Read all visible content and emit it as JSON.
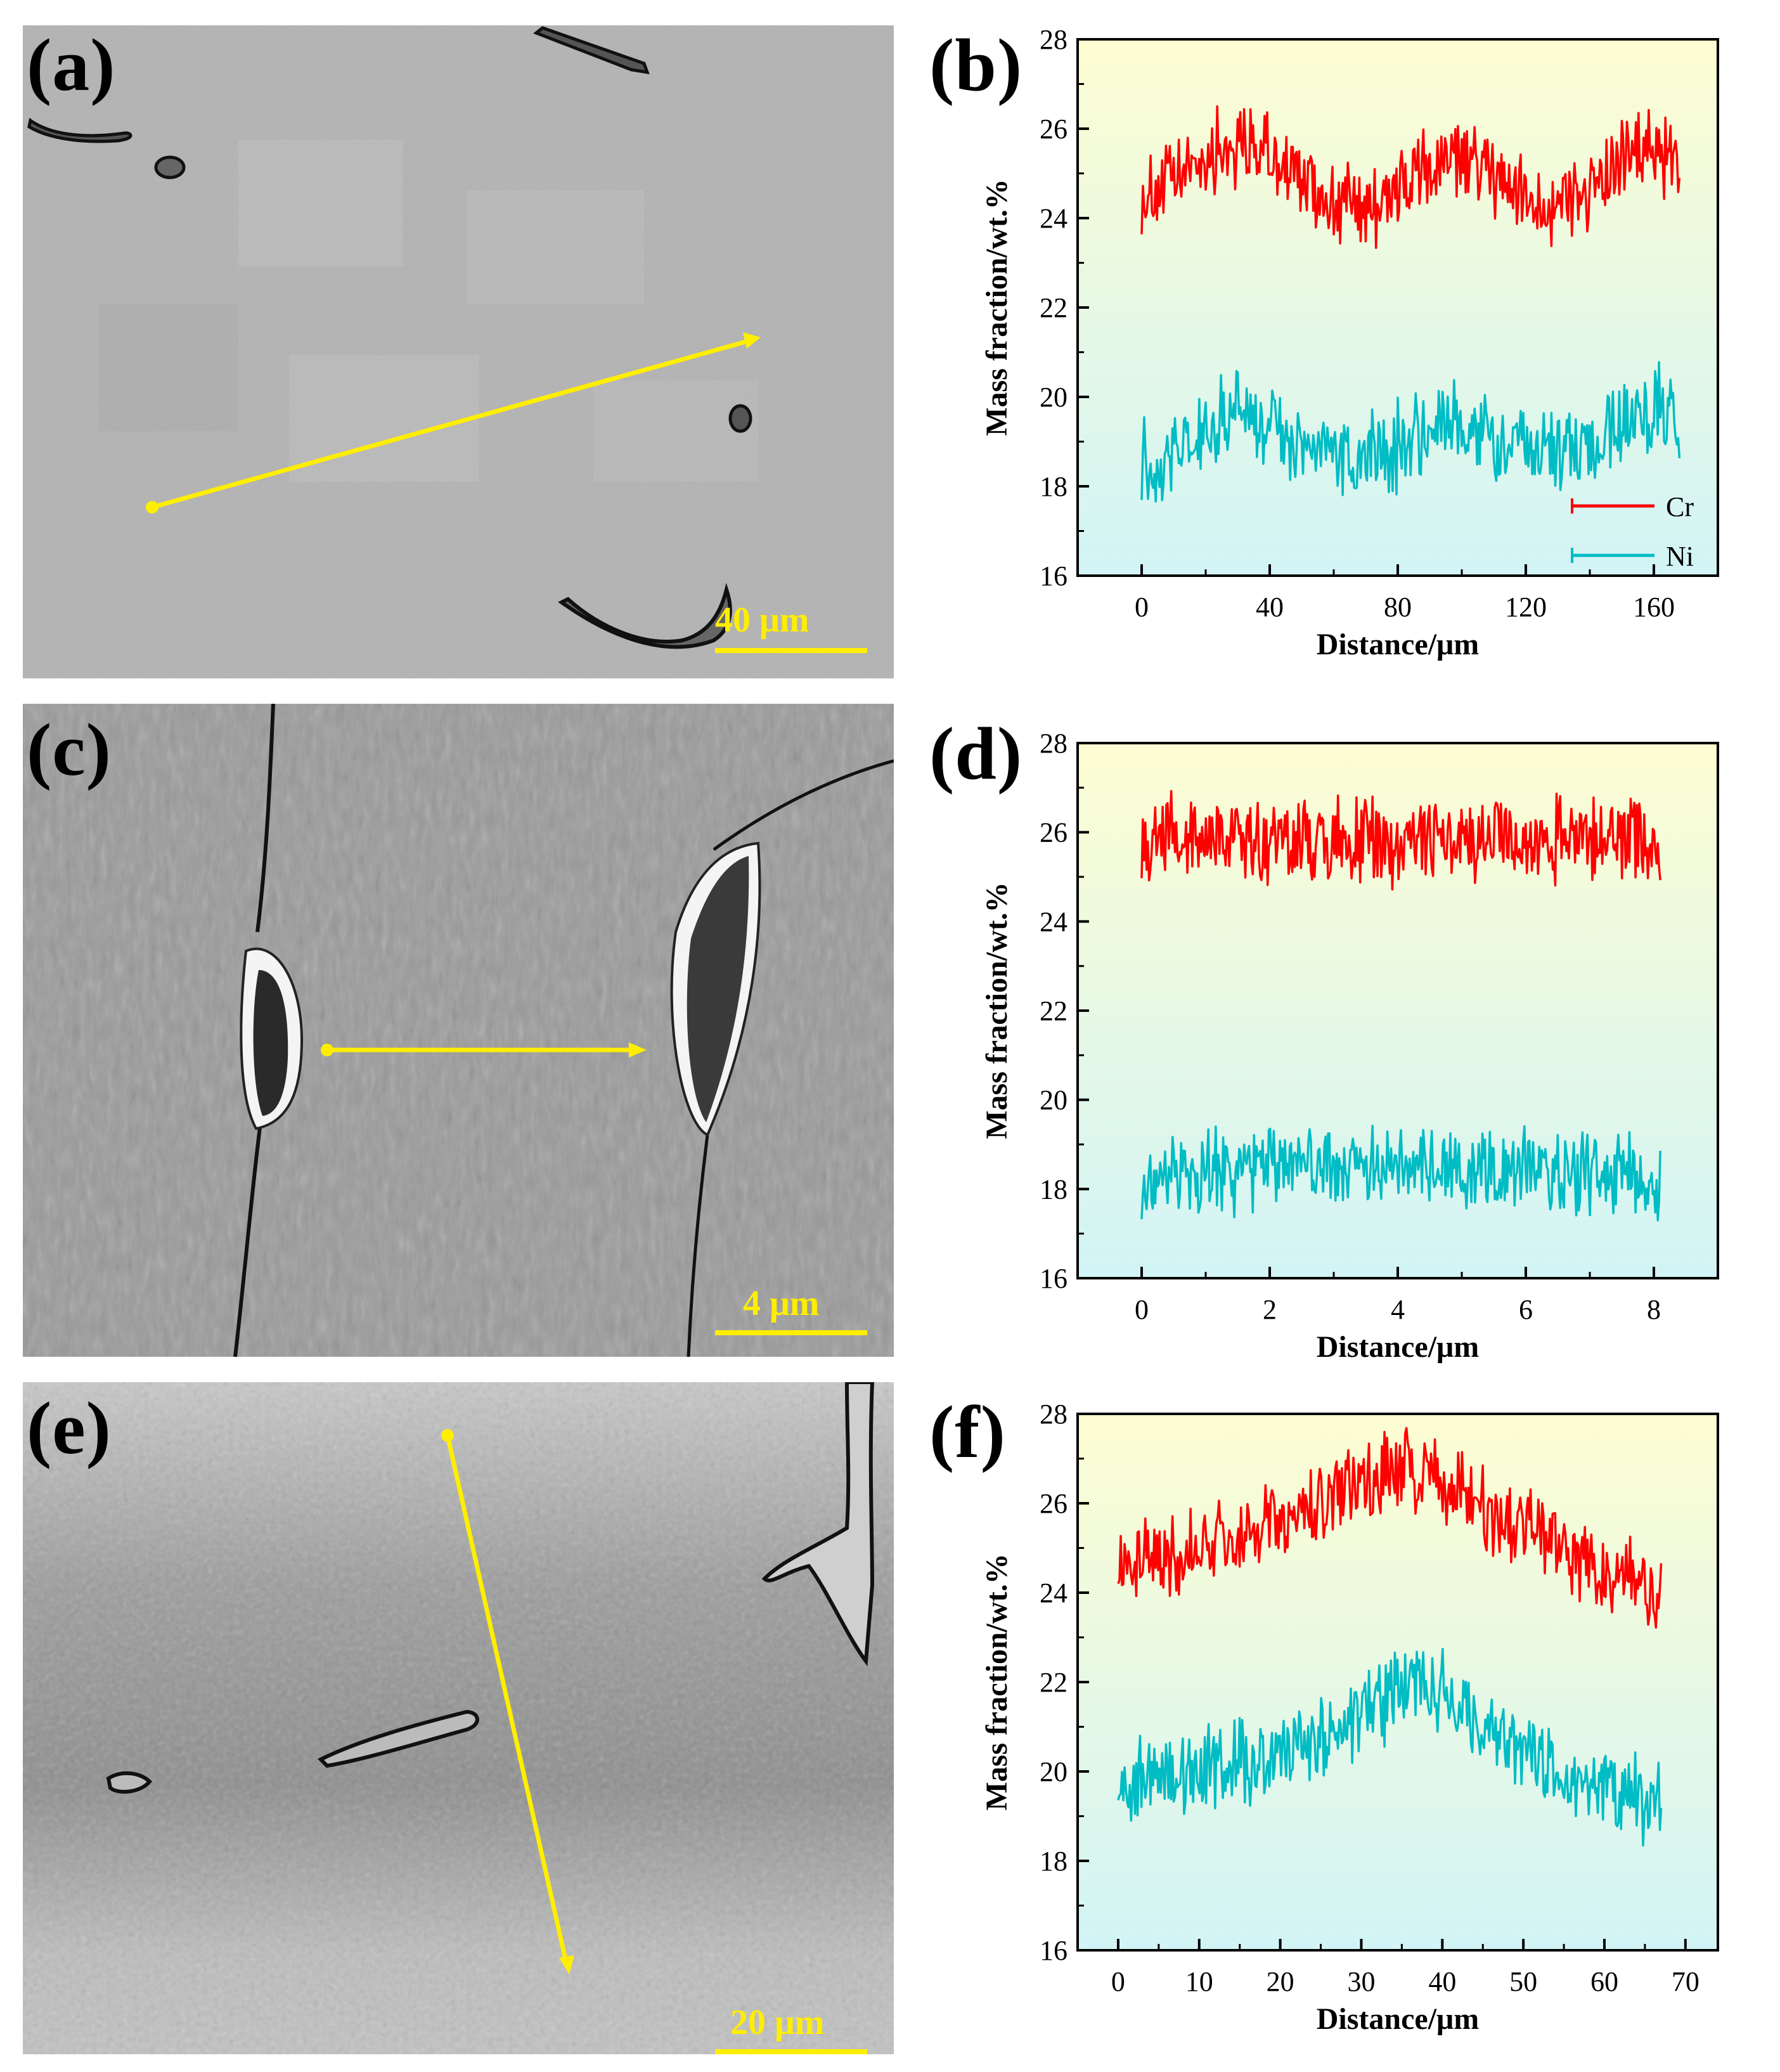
{
  "panels": {
    "a": {
      "label": "(a)",
      "scalebar": "40 μm"
    },
    "c": {
      "label": "(c)",
      "scalebar": "4 μm"
    },
    "e": {
      "label": "(e)",
      "scalebar": "20 μm"
    }
  },
  "colors": {
    "cr": "#ff0000",
    "ni": "#00bcc4",
    "arrow": "#ffee00",
    "scalebar": "#ffee00",
    "bg_top": "#fdfdd2",
    "bg_bottom": "#d2f4f6"
  },
  "chart_data": [
    {
      "id": "b",
      "label": "(b)",
      "type": "line",
      "xlabel": "Distance/μm",
      "ylabel": "Mass fraction/wt.%",
      "xlim": [
        -20,
        180
      ],
      "ylim": [
        16,
        28
      ],
      "xticks": [
        0,
        40,
        80,
        120,
        160
      ],
      "yticks": [
        16,
        18,
        20,
        22,
        24,
        26,
        28
      ],
      "legend": {
        "placement": "bottom-right",
        "entries": [
          "Cr",
          "Ni"
        ]
      },
      "series": [
        {
          "name": "Cr",
          "x_range": [
            0,
            168
          ],
          "profile_x": [
            0,
            10,
            20,
            30,
            40,
            50,
            60,
            68,
            80,
            95,
            105,
            115,
            128,
            140,
            150,
            160,
            168
          ],
          "profile_y": [
            24.5,
            24.8,
            25.4,
            25.7,
            25.4,
            24.8,
            24.4,
            24.2,
            24.6,
            25.3,
            25.2,
            24.6,
            24.3,
            24.7,
            25.2,
            25.6,
            25.1
          ]
        },
        {
          "name": "Ni",
          "x_range": [
            0,
            168
          ],
          "profile_x": [
            0,
            10,
            20,
            30,
            40,
            50,
            60,
            68,
            80,
            95,
            105,
            115,
            128,
            140,
            150,
            160,
            168
          ],
          "profile_y": [
            18.5,
            18.9,
            19.3,
            19.6,
            19.3,
            18.9,
            18.7,
            18.6,
            18.9,
            19.4,
            19.3,
            18.9,
            18.6,
            18.9,
            19.5,
            19.8,
            19.6
          ]
        }
      ]
    },
    {
      "id": "d",
      "label": "(d)",
      "type": "line",
      "xlabel": "Distance/μm",
      "ylabel": "Mass fraction/wt.%",
      "xlim": [
        -1,
        9
      ],
      "ylim": [
        16,
        28
      ],
      "xticks": [
        0,
        2,
        4,
        6,
        8
      ],
      "yticks": [
        16,
        18,
        20,
        22,
        24,
        26,
        28
      ],
      "series": [
        {
          "name": "Cr",
          "x_range": [
            0,
            8.1
          ],
          "profile_x": [
            0,
            2,
            4,
            6,
            8.1
          ],
          "profile_y": [
            26.0,
            25.8,
            25.8,
            25.9,
            25.8
          ]
        },
        {
          "name": "Ni",
          "x_range": [
            0,
            8.1
          ],
          "profile_x": [
            0,
            2,
            4,
            6,
            8.1
          ],
          "profile_y": [
            18.3,
            18.5,
            18.5,
            18.4,
            18.3
          ]
        }
      ]
    },
    {
      "id": "f",
      "label": "(f)",
      "type": "line",
      "xlabel": "Distance/μm",
      "ylabel": "Mass fraction/wt.%",
      "xlim": [
        -5,
        74
      ],
      "ylim": [
        16,
        28
      ],
      "xticks": [
        0,
        10,
        20,
        30,
        40,
        50,
        60,
        70
      ],
      "yticks": [
        16,
        18,
        20,
        22,
        24,
        26,
        28
      ],
      "series": [
        {
          "name": "Cr",
          "x_range": [
            0,
            67
          ],
          "profile_x": [
            0,
            10,
            20,
            30,
            35,
            40,
            50,
            60,
            67
          ],
          "profile_y": [
            24.7,
            24.9,
            25.5,
            26.4,
            26.8,
            26.4,
            25.4,
            24.5,
            24.0
          ]
        },
        {
          "name": "Ni",
          "x_range": [
            0,
            67
          ],
          "profile_x": [
            0,
            10,
            20,
            30,
            37,
            40,
            50,
            60,
            67
          ],
          "profile_y": [
            19.8,
            20.0,
            20.4,
            21.2,
            22.0,
            21.7,
            20.4,
            19.6,
            19.3
          ]
        }
      ]
    }
  ]
}
